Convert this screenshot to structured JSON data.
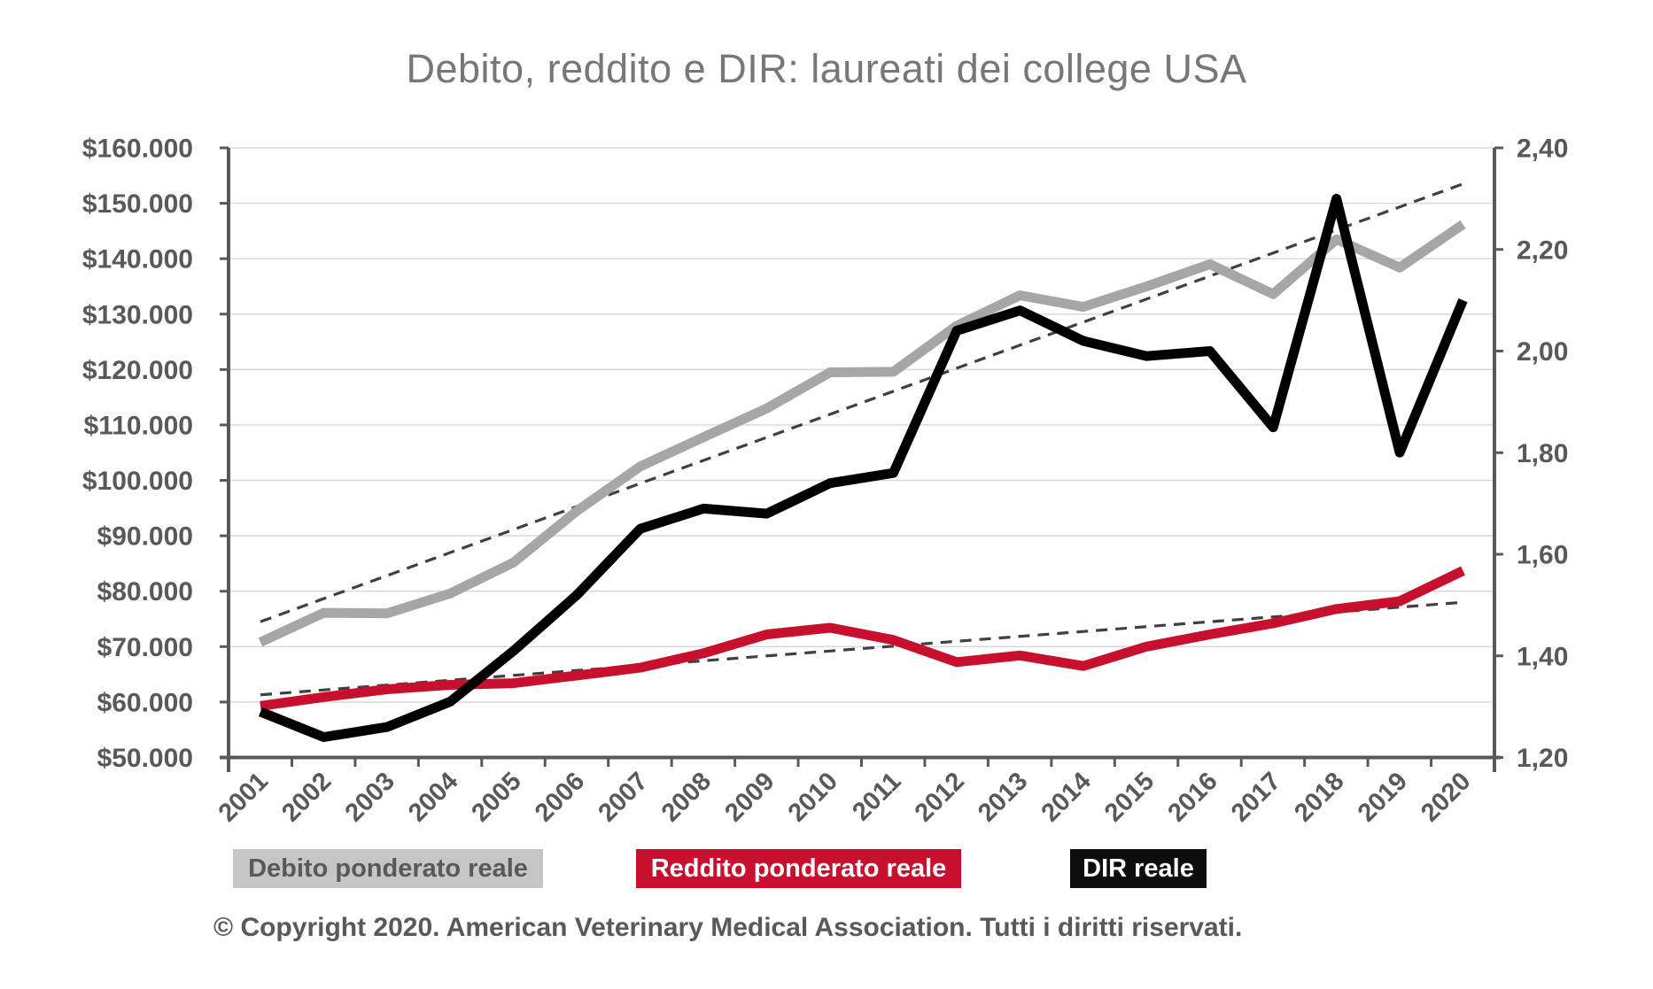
{
  "title": "Debito, reddito e DIR: laureati dei college USA",
  "copyright": "© Copyright 2020. American Veterinary Medical Association. Tutti i diritti riservati.",
  "legend": [
    {
      "label": "Debito ponderato reale",
      "bg": "#c6c6c6",
      "text_color": "#595959"
    },
    {
      "label": "Reddito ponderato reale",
      "bg": "#c8102e",
      "text_color": "#ffffff"
    },
    {
      "label": "DIR reale",
      "bg": "#0d0d0d",
      "text_color": "#ffffff"
    }
  ],
  "colors": {
    "debito_line": "#a6a6a6",
    "reddito_line": "#c8102e",
    "dir_line": "#000000",
    "trendline": "#404040",
    "axis": "#595959",
    "gridline": "#d8d8d8",
    "tick_label": "#595959",
    "title_text": "#777777"
  },
  "chart_data": {
    "type": "line",
    "x": [
      2001,
      2002,
      2003,
      2004,
      2005,
      2006,
      2007,
      2008,
      2009,
      2010,
      2011,
      2012,
      2013,
      2014,
      2015,
      2016,
      2017,
      2018,
      2019,
      2020
    ],
    "series": [
      {
        "name": "Debito ponderato reale",
        "axis": "left",
        "color": "#a6a6a6",
        "values": [
          70800,
          76100,
          76000,
          79600,
          85200,
          94500,
          102500,
          107800,
          113000,
          119500,
          119600,
          127900,
          133400,
          131300,
          135000,
          139000,
          133600,
          143500,
          138400,
          146200
        ]
      },
      {
        "name": "Reddito ponderato reale",
        "axis": "left",
        "color": "#c8102e",
        "values": [
          59300,
          60900,
          62300,
          63100,
          63400,
          64800,
          66200,
          68800,
          72200,
          73400,
          71200,
          67200,
          68400,
          66500,
          70000,
          72200,
          74200,
          76800,
          78200,
          83700
        ]
      },
      {
        "name": "DIR reale",
        "axis": "right",
        "color": "#000000",
        "values": [
          1.29,
          1.24,
          1.26,
          1.31,
          1.41,
          1.52,
          1.65,
          1.69,
          1.68,
          1.74,
          1.76,
          2.04,
          2.08,
          2.02,
          1.99,
          2.0,
          1.85,
          2.3,
          1.8,
          2.1
        ]
      }
    ],
    "trendlines": [
      {
        "series": "Debito ponderato reale",
        "axis": "left",
        "style": "dashed",
        "start_year": 2001,
        "end_year": 2020,
        "start_value": 74500,
        "end_value": 153500
      },
      {
        "series": "Reddito ponderato reale",
        "axis": "left",
        "style": "dashed",
        "start_year": 2001,
        "end_year": 2020,
        "start_value": 61300,
        "end_value": 78000
      }
    ],
    "axes": {
      "left": {
        "min": 50000,
        "max": 160000,
        "step": 10000,
        "tick_labels": [
          "$160.000",
          "$150.000",
          "$140.000",
          "$130.000",
          "$120.000",
          "$110.000",
          "$100.000",
          "$90.000",
          "$80.000",
          "$70.000",
          "$60.000",
          "$50.000"
        ]
      },
      "right": {
        "min": 1.2,
        "max": 2.4,
        "step": 0.2,
        "tick_labels": [
          "2,40",
          "2,20",
          "2,00",
          "1,80",
          "1,60",
          "1,40",
          "1,20"
        ]
      }
    },
    "grid": true,
    "legend_position": "bottom"
  }
}
